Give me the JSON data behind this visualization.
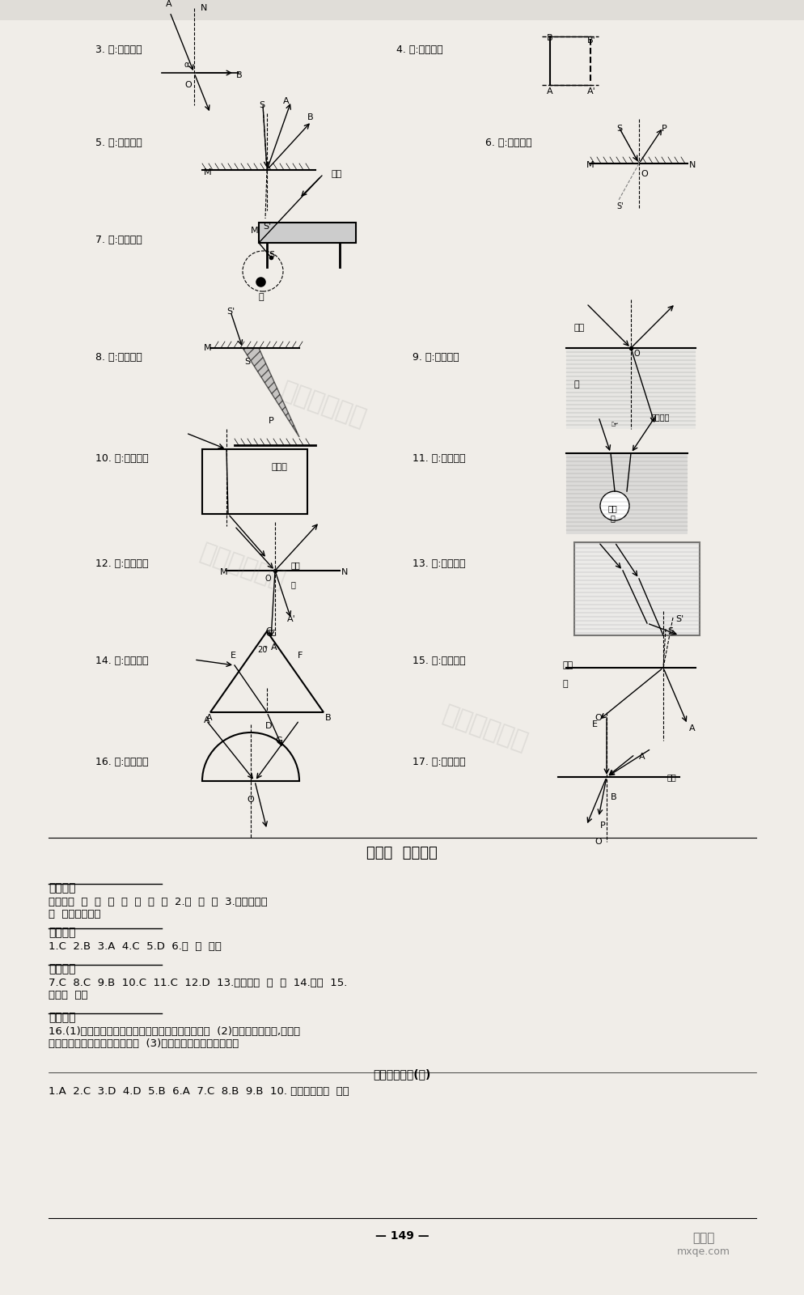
{
  "bg_color": "#f0ede8",
  "title_section4": "第四节  光的色散",
  "yaodian_title": "要点识记",
  "yaodian_content": "光的色散  红  橙  黄  绿  蓝  靛  紫  2.红  绿  蓝  3.它透过的色\n光  它反射的色光",
  "ketang_title": "课堂训练",
  "ketang_content": "1.C  2.B  3.A  4.C  5.D  6.红  黑  反射",
  "kehou_title": "课后作业",
  "kehou_content": "7.C  8.C  9.B  10.C  11.C  12.D  13.光的色散  红  绿  14.吸收  15.\n漫反射  各种",
  "nengli_title": "能力拓展",
  "nengli_content": "16.(1)绿色植物喜欢红、橙、黄、蓝、靛、紫色的光  (2)红花会反射红光,它喜欢\n橙、黄、绿、蓝、靛、紫色的光  (3)由它能透过的光的颜色决定",
  "bottom_content": "优生培养计划(三)",
  "bottom_answers": "1.A  2.C  3.D  4.D  5.B  6.A  7.C  8.B  9.B  10. 光沿直线传播  光的",
  "page_number": "— 149 —",
  "watermark": "优生培养计划"
}
